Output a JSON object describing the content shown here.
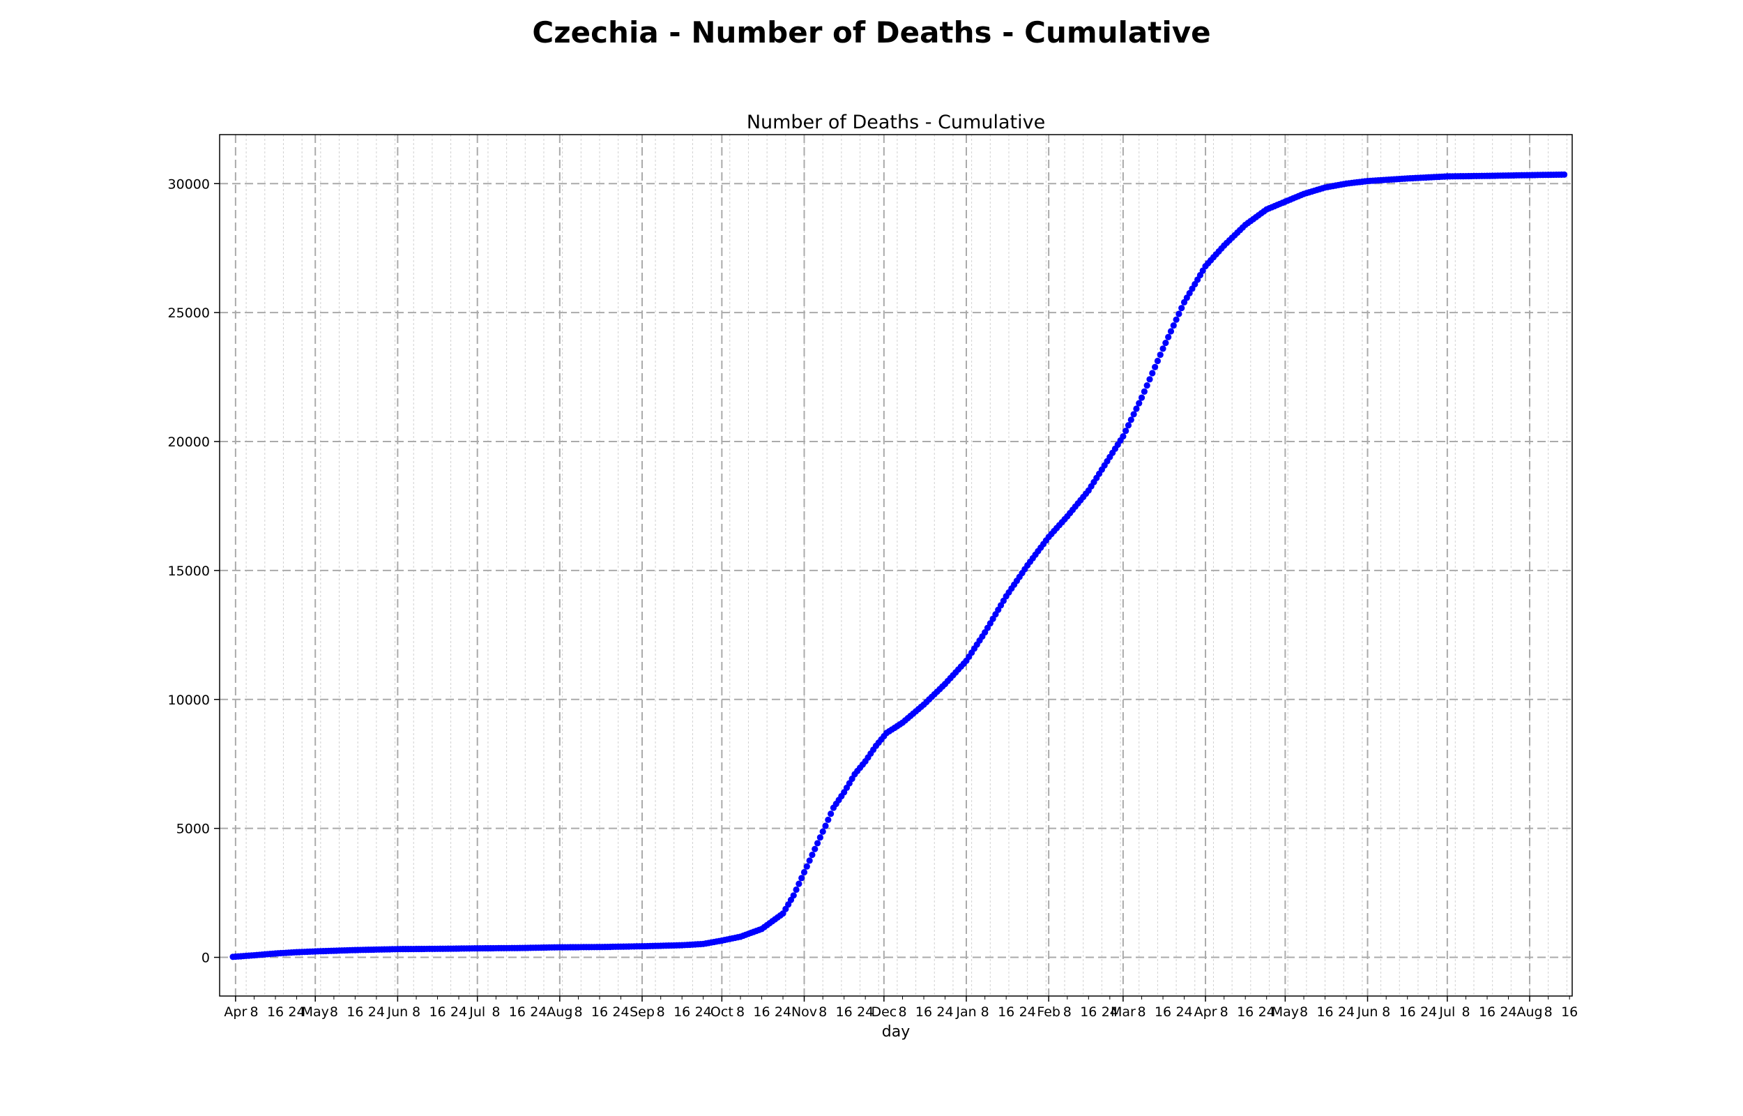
{
  "figure_title": "Czechia - Number of Deaths - Cumulative",
  "chart_data": {
    "type": "scatter",
    "title": "Number of Deaths - Cumulative",
    "xlabel": "day",
    "ylabel": "",
    "x_start_date": "2020-03-31",
    "x_end_date": "2021-08-14",
    "ylim": [
      -1500,
      31900
    ],
    "y_ticks": [
      0,
      5000,
      10000,
      15000,
      20000,
      25000,
      30000
    ],
    "grid": true,
    "marker_color": "#0000ff",
    "series": [
      {
        "points": [
          [
            "2020-03-31",
            20
          ],
          [
            "2020-04-08",
            80
          ],
          [
            "2020-04-16",
            150
          ],
          [
            "2020-04-24",
            200
          ],
          [
            "2020-05-01",
            230
          ],
          [
            "2020-05-15",
            280
          ],
          [
            "2020-06-01",
            320
          ],
          [
            "2020-06-16",
            330
          ],
          [
            "2020-07-01",
            350
          ],
          [
            "2020-07-16",
            360
          ],
          [
            "2020-08-01",
            390
          ],
          [
            "2020-08-16",
            400
          ],
          [
            "2020-09-01",
            430
          ],
          [
            "2020-09-16",
            470
          ],
          [
            "2020-09-24",
            520
          ],
          [
            "2020-10-01",
            650
          ],
          [
            "2020-10-08",
            800
          ],
          [
            "2020-10-16",
            1100
          ],
          [
            "2020-10-24",
            1700
          ],
          [
            "2020-10-28",
            2400
          ],
          [
            "2020-11-01",
            3300
          ],
          [
            "2020-11-05",
            4200
          ],
          [
            "2020-11-09",
            5100
          ],
          [
            "2020-11-12",
            5800
          ],
          [
            "2020-11-16",
            6400
          ],
          [
            "2020-11-20",
            7100
          ],
          [
            "2020-11-24",
            7600
          ],
          [
            "2020-11-28",
            8200
          ],
          [
            "2020-12-02",
            8700
          ],
          [
            "2020-12-08",
            9100
          ],
          [
            "2020-12-16",
            9800
          ],
          [
            "2020-12-24",
            10600
          ],
          [
            "2021-01-01",
            11500
          ],
          [
            "2021-01-08",
            12600
          ],
          [
            "2021-01-16",
            14000
          ],
          [
            "2021-01-24",
            15200
          ],
          [
            "2021-02-01",
            16300
          ],
          [
            "2021-02-08",
            17100
          ],
          [
            "2021-02-16",
            18100
          ],
          [
            "2021-02-24",
            19400
          ],
          [
            "2021-03-01",
            20200
          ],
          [
            "2021-03-08",
            21700
          ],
          [
            "2021-03-16",
            23600
          ],
          [
            "2021-03-24",
            25400
          ],
          [
            "2021-04-01",
            26800
          ],
          [
            "2021-04-08",
            27600
          ],
          [
            "2021-04-16",
            28400
          ],
          [
            "2021-04-24",
            29000
          ],
          [
            "2021-05-01",
            29300
          ],
          [
            "2021-05-08",
            29600
          ],
          [
            "2021-05-16",
            29850
          ],
          [
            "2021-05-24",
            30000
          ],
          [
            "2021-06-01",
            30100
          ],
          [
            "2021-06-16",
            30200
          ],
          [
            "2021-07-01",
            30280
          ],
          [
            "2021-07-16",
            30300
          ],
          [
            "2021-08-01",
            30330
          ],
          [
            "2021-08-14",
            30350
          ]
        ]
      }
    ],
    "x_major_ticks": [
      "Apr",
      "May",
      "Jun",
      "Jul",
      "Aug",
      "Sep",
      "Oct",
      "Nov",
      "Dec",
      "Jan",
      "Feb",
      "Mar",
      "Apr",
      "May",
      "Jun",
      "Jul",
      "Aug"
    ],
    "x_minor_tick_labels": [
      "8",
      "16",
      "24"
    ]
  }
}
